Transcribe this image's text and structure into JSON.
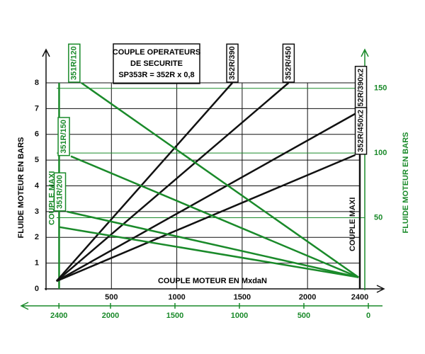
{
  "chart_data": {
    "type": "line",
    "annotation": [
      "COUPLE OPERATEURS",
      "DE SECURITE",
      "SP353R = 352R x 0,8"
    ],
    "xlabel": "COUPLE MOTEUR EN MxdaN",
    "ylabel": "FLUIDE MOTEUR EN BARS",
    "y2label": "FLUIDE MOTEUR EN BARS",
    "xlim": [
      0,
      2400
    ],
    "xticks": [
      500,
      1000,
      1500,
      2000,
      2400
    ],
    "ylim": [
      0,
      8
    ],
    "yticks": [
      0,
      1,
      2,
      3,
      4,
      5,
      6,
      7,
      8
    ],
    "x2lim": [
      2500,
      0
    ],
    "x2ticks": [
      2400,
      2000,
      1500,
      1000,
      500,
      0
    ],
    "y2lim": [
      -5,
      157
    ],
    "y2ticks": [
      50,
      100,
      150
    ],
    "grid": true,
    "axis_color": "#111111",
    "axis2_color": "#1a8a2a",
    "series": [
      {
        "name": "352R/390",
        "color": "#111111",
        "x": [
          80,
          1425
        ],
        "values": [
          0.3,
          8
        ]
      },
      {
        "name": "352R/450",
        "color": "#111111",
        "x": [
          80,
          1855
        ],
        "values": [
          0.3,
          8
        ]
      },
      {
        "name": "352R/390x2",
        "color": "#111111",
        "x": [
          80,
          2365
        ],
        "values": [
          0.3,
          6.8
        ]
      },
      {
        "name": "352R/450x2",
        "color": "#111111",
        "x": [
          80,
          2365
        ],
        "values": [
          0.3,
          5.2
        ]
      },
      {
        "name": "351R/120",
        "color": "#1a8a2a",
        "x": [
          270,
          2390
        ],
        "values": [
          8,
          0.45
        ]
      },
      {
        "name": "351R/150",
        "color": "#1a8a2a",
        "x": [
          190,
          2390
        ],
        "values": [
          5.15,
          0.45
        ]
      },
      {
        "name": "351R/200",
        "color": "#1a8a2a",
        "x": [
          160,
          2390
        ],
        "values": [
          3.0,
          0.45
        ]
      },
      {
        "color": "#1a8a2a",
        "x": [
          100,
          2390
        ],
        "values": [
          2.4,
          0.45
        ]
      }
    ],
    "vlines": [
      {
        "label": "COUPLE MAXI",
        "x": 100,
        "color": "#1a8a2a"
      },
      {
        "label": "COUPLE MAXI",
        "x": 2400,
        "color": "#111111"
      }
    ]
  }
}
